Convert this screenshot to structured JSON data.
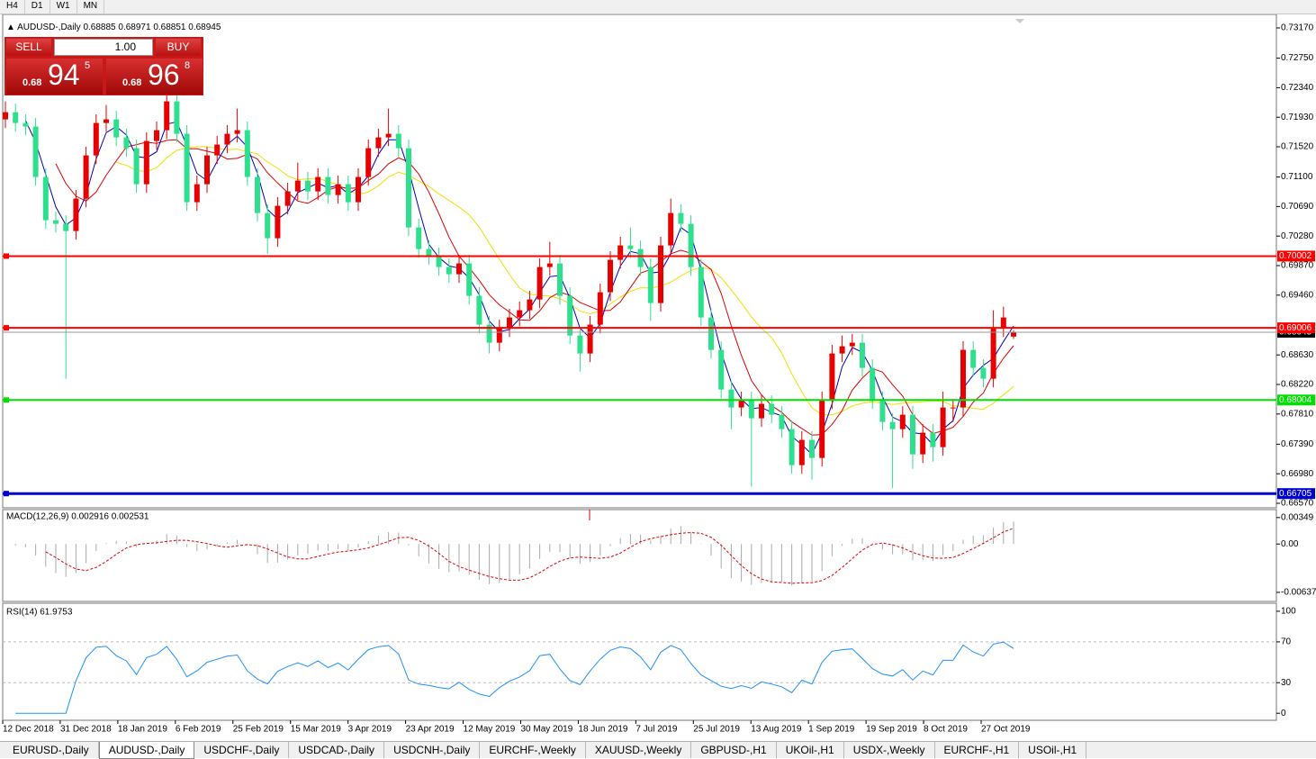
{
  "toolbar": {
    "timeframes": [
      "H4",
      "D1",
      "W1",
      "MN"
    ]
  },
  "trade_panel": {
    "sell": "SELL",
    "buy": "BUY",
    "volume": "1.00",
    "bid": {
      "prefix": "0.68",
      "big": "94",
      "small": "5"
    },
    "ask": {
      "prefix": "0.68",
      "big": "96",
      "small": "8"
    }
  },
  "chart_data": {
    "type": "candlestick",
    "symbol": "AUDUSD-,Daily",
    "up_color": "#e60000",
    "down_color": "#2ee08e",
    "candles": [
      [
        0.719,
        0.7215,
        0.7178,
        0.72
      ],
      [
        0.72,
        0.7212,
        0.7173,
        0.7185
      ],
      [
        0.7185,
        0.7197,
        0.7168,
        0.718
      ],
      [
        0.718,
        0.7192,
        0.7098,
        0.711
      ],
      [
        0.711,
        0.7122,
        0.7038,
        0.705
      ],
      [
        0.705,
        0.7062,
        0.7033,
        0.7045
      ],
      [
        0.7045,
        0.7057,
        0.683,
        0.7035
      ],
      [
        0.7035,
        0.7092,
        0.7023,
        0.708
      ],
      [
        0.708,
        0.7152,
        0.7068,
        0.714
      ],
      [
        0.714,
        0.7197,
        0.7128,
        0.7185
      ],
      [
        0.7185,
        0.721,
        0.7173,
        0.719
      ],
      [
        0.719,
        0.7202,
        0.7153,
        0.7165
      ],
      [
        0.7165,
        0.7177,
        0.7138,
        0.715
      ],
      [
        0.715,
        0.7162,
        0.7088,
        0.71
      ],
      [
        0.71,
        0.7172,
        0.7088,
        0.716
      ],
      [
        0.716,
        0.7187,
        0.7148,
        0.7175
      ],
      [
        0.7175,
        0.7227,
        0.7163,
        0.7215
      ],
      [
        0.7215,
        0.7227,
        0.7158,
        0.717
      ],
      [
        0.717,
        0.7182,
        0.7063,
        0.7075
      ],
      [
        0.7075,
        0.7112,
        0.7063,
        0.71
      ],
      [
        0.71,
        0.7152,
        0.7088,
        0.714
      ],
      [
        0.714,
        0.7167,
        0.7128,
        0.7155
      ],
      [
        0.7155,
        0.7182,
        0.7143,
        0.717
      ],
      [
        0.717,
        0.7205,
        0.7158,
        0.7175
      ],
      [
        0.7175,
        0.7187,
        0.7098,
        0.711
      ],
      [
        0.711,
        0.7122,
        0.7048,
        0.706
      ],
      [
        0.706,
        0.7072,
        0.7003,
        0.7025
      ],
      [
        0.7025,
        0.7082,
        0.7013,
        0.707
      ],
      [
        0.707,
        0.7102,
        0.7058,
        0.709
      ],
      [
        0.709,
        0.713,
        0.7078,
        0.7105
      ],
      [
        0.7105,
        0.7117,
        0.7078,
        0.709
      ],
      [
        0.709,
        0.7122,
        0.7078,
        0.711
      ],
      [
        0.711,
        0.7122,
        0.7073,
        0.7085
      ],
      [
        0.7085,
        0.7112,
        0.7073,
        0.71
      ],
      [
        0.71,
        0.7112,
        0.7063,
        0.7075
      ],
      [
        0.7075,
        0.7122,
        0.7063,
        0.711
      ],
      [
        0.711,
        0.7162,
        0.7098,
        0.715
      ],
      [
        0.715,
        0.7177,
        0.7138,
        0.7165
      ],
      [
        0.7165,
        0.7205,
        0.7153,
        0.717
      ],
      [
        0.717,
        0.7182,
        0.7138,
        0.715
      ],
      [
        0.715,
        0.7162,
        0.7028,
        0.704
      ],
      [
        0.704,
        0.7052,
        0.6998,
        0.701
      ],
      [
        0.701,
        0.7022,
        0.6988,
        0.7
      ],
      [
        0.7,
        0.7012,
        0.6973,
        0.6985
      ],
      [
        0.6985,
        0.6997,
        0.6963,
        0.6975
      ],
      [
        0.6975,
        0.7002,
        0.6963,
        0.699
      ],
      [
        0.699,
        0.7002,
        0.6933,
        0.6945
      ],
      [
        0.6945,
        0.6957,
        0.6893,
        0.6905
      ],
      [
        0.6905,
        0.6917,
        0.6865,
        0.688
      ],
      [
        0.688,
        0.6912,
        0.6868,
        0.69
      ],
      [
        0.69,
        0.6927,
        0.6888,
        0.6915
      ],
      [
        0.6915,
        0.6937,
        0.6903,
        0.6925
      ],
      [
        0.6925,
        0.6952,
        0.6913,
        0.694
      ],
      [
        0.694,
        0.6997,
        0.6928,
        0.6985
      ],
      [
        0.6985,
        0.702,
        0.6973,
        0.699
      ],
      [
        0.699,
        0.7002,
        0.6933,
        0.6945
      ],
      [
        0.6945,
        0.6957,
        0.6878,
        0.689
      ],
      [
        0.689,
        0.6902,
        0.684,
        0.6865
      ],
      [
        0.6865,
        0.6917,
        0.6853,
        0.6905
      ],
      [
        0.6905,
        0.6962,
        0.6893,
        0.695
      ],
      [
        0.695,
        0.7007,
        0.6938,
        0.6995
      ],
      [
        0.6995,
        0.7027,
        0.6983,
        0.7015
      ],
      [
        0.7015,
        0.704,
        0.6998,
        0.701
      ],
      [
        0.701,
        0.7022,
        0.6973,
        0.6985
      ],
      [
        0.6985,
        0.6997,
        0.691,
        0.6935
      ],
      [
        0.6935,
        0.7027,
        0.6923,
        0.7015
      ],
      [
        0.7015,
        0.708,
        0.7003,
        0.706
      ],
      [
        0.706,
        0.7072,
        0.7033,
        0.7045
      ],
      [
        0.7045,
        0.7057,
        0.6973,
        0.6985
      ],
      [
        0.6985,
        0.6997,
        0.6903,
        0.6915
      ],
      [
        0.6915,
        0.6927,
        0.6858,
        0.687
      ],
      [
        0.687,
        0.6882,
        0.6803,
        0.6815
      ],
      [
        0.6815,
        0.6827,
        0.676,
        0.679
      ],
      [
        0.679,
        0.6812,
        0.6778,
        0.68
      ],
      [
        0.68,
        0.6812,
        0.668,
        0.6775
      ],
      [
        0.6775,
        0.6807,
        0.6763,
        0.6795
      ],
      [
        0.6795,
        0.6807,
        0.6768,
        0.678
      ],
      [
        0.678,
        0.6792,
        0.6748,
        0.676
      ],
      [
        0.676,
        0.6772,
        0.6698,
        0.671
      ],
      [
        0.671,
        0.6757,
        0.6698,
        0.6745
      ],
      [
        0.6745,
        0.6757,
        0.669,
        0.672
      ],
      [
        0.672,
        0.6812,
        0.6708,
        0.68
      ],
      [
        0.68,
        0.6877,
        0.6788,
        0.6865
      ],
      [
        0.6865,
        0.689,
        0.6853,
        0.6875
      ],
      [
        0.6875,
        0.6892,
        0.6863,
        0.688
      ],
      [
        0.688,
        0.6892,
        0.6833,
        0.6845
      ],
      [
        0.6845,
        0.6857,
        0.6788,
        0.68
      ],
      [
        0.68,
        0.6812,
        0.6758,
        0.677
      ],
      [
        0.677,
        0.6782,
        0.6678,
        0.676
      ],
      [
        0.676,
        0.6792,
        0.6748,
        0.678
      ],
      [
        0.678,
        0.6792,
        0.6705,
        0.6725
      ],
      [
        0.6725,
        0.6767,
        0.6713,
        0.6755
      ],
      [
        0.6755,
        0.6767,
        0.6715,
        0.6735
      ],
      [
        0.6735,
        0.6812,
        0.6723,
        0.679
      ],
      [
        0.679,
        0.6802,
        0.677,
        0.679
      ],
      [
        0.679,
        0.6882,
        0.6778,
        0.687
      ],
      [
        0.687,
        0.6882,
        0.6833,
        0.6845
      ],
      [
        0.6845,
        0.6857,
        0.6818,
        0.683
      ],
      [
        0.683,
        0.6925,
        0.6818,
        0.69
      ],
      [
        0.69,
        0.693,
        0.6888,
        0.6915
      ],
      [
        0.68885,
        0.68971,
        0.68851,
        0.68945
      ]
    ],
    "ylim": [
      0.6652,
      0.73345
    ],
    "yticks": [
      {
        "value": 0.7317,
        "label": "0.73170"
      },
      {
        "value": 0.7275,
        "label": "0.72750"
      },
      {
        "value": 0.7234,
        "label": "0.72340"
      },
      {
        "value": 0.7193,
        "label": "0.71930"
      },
      {
        "value": 0.7152,
        "label": "0.71520"
      },
      {
        "value": 0.711,
        "label": "0.71100"
      },
      {
        "value": 0.7069,
        "label": "0.70690"
      },
      {
        "value": 0.7028,
        "label": "0.70280"
      },
      {
        "value": 0.6987,
        "label": "0.69870"
      },
      {
        "value": 0.6946,
        "label": "0.69460"
      },
      {
        "value": 0.6863,
        "label": "0.68630"
      },
      {
        "value": 0.6822,
        "label": "0.68220"
      },
      {
        "value": 0.6781,
        "label": "0.67810"
      },
      {
        "value": 0.6739,
        "label": "0.67390"
      },
      {
        "value": 0.6698,
        "label": "0.66980"
      },
      {
        "value": 0.6657,
        "label": "0.66570"
      }
    ],
    "levels": [
      {
        "value": 0.70002,
        "color": "#ff0000"
      },
      {
        "value": 0.69006,
        "color": "#ff0000"
      },
      {
        "value": 0.68004,
        "color": "#00e000"
      },
      {
        "value": 0.66705,
        "color": "#0000d0"
      }
    ],
    "x_labels": [
      "12 Dec 2018",
      "31 Dec 2018",
      "18 Jan 2019",
      "6 Feb 2019",
      "25 Feb 2019",
      "15 Mar 2019",
      "3 Apr 2019",
      "23 Apr 2019",
      "12 May 2019",
      "30 May 2019",
      "18 Jun 2019",
      "7 Jul 2019",
      "25 Jul 2019",
      "13 Aug 2019",
      "1 Sep 2019",
      "19 Sep 2019",
      "8 Oct 2019",
      "27 Oct 2019"
    ],
    "macd": {
      "label": "MACD(12,26,9) 0.002916 0.002531",
      "ylim": [
        -0.00745,
        0.00442
      ],
      "yticks": [
        0.00349,
        {
          "value": 0,
          "label": "0.00"
        },
        -0.00637
      ]
    },
    "rsi": {
      "label": "RSI(14) 61.9753",
      "ylim": [
        -6,
        107
      ],
      "yticks": [
        100,
        70,
        30,
        0
      ],
      "levels": [
        70,
        30
      ]
    }
  },
  "tabs": {
    "items": [
      "EURUSD-,Daily",
      "AUDUSD-,Daily",
      "USDCHF-,Daily",
      "USDCAD-,Daily",
      "USDCNH-,Daily",
      "EURCHF-,Weekly",
      "XAUUSD-,Weekly",
      "GBPUSD-,H1",
      "UKOil-,H1",
      "USDX-,Weekly",
      "EURCHF-,H1",
      "USOil-,H1"
    ],
    "active": 1
  }
}
